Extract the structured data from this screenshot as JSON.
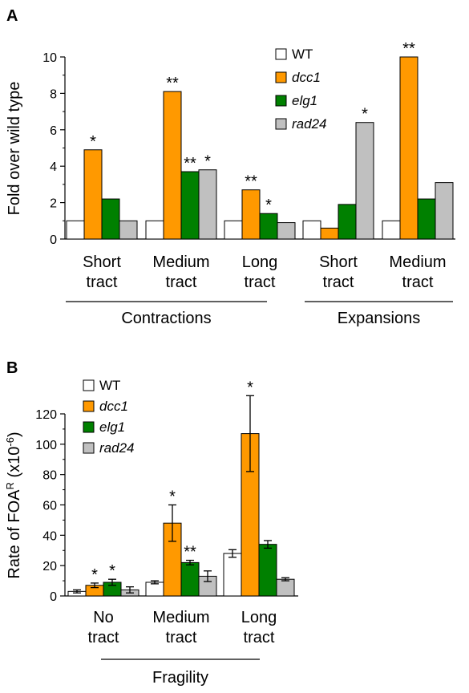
{
  "colors": {
    "WT": "#ffffff",
    "dcc1": "#ff9900",
    "elg1": "#008000",
    "rad24": "#c0c0c0"
  },
  "chart_data": [
    {
      "panel": "A",
      "type": "bar",
      "ylabel": "Fold over wild type",
      "ylim": [
        0,
        10
      ],
      "yticks": [
        "0",
        "2",
        "4",
        "6",
        "8",
        "10"
      ],
      "legend_position": "top-right",
      "categories": [
        "Short tract",
        "Medium tract",
        "Long tract",
        "Short tract",
        "Medium tract"
      ],
      "category_lines": [
        [
          "Short",
          "tract"
        ],
        [
          "Medium",
          "tract"
        ],
        [
          "Long",
          "tract"
        ],
        [
          "Short",
          "tract"
        ],
        [
          "Medium",
          "tract"
        ]
      ],
      "groups": [
        {
          "label": "Contractions",
          "categories": [
            0,
            1,
            2
          ]
        },
        {
          "label": "Expansions",
          "categories": [
            3,
            4
          ]
        }
      ],
      "series": [
        {
          "name": "WT",
          "italic": false,
          "values": [
            1,
            1,
            1,
            1,
            1
          ],
          "sig": [
            "",
            "",
            "",
            "",
            ""
          ]
        },
        {
          "name": "dcc1",
          "italic": true,
          "values": [
            4.9,
            8.1,
            2.7,
            0.6,
            10
          ],
          "sig": [
            "*",
            "**",
            "**",
            "",
            "**"
          ]
        },
        {
          "name": "elg1",
          "italic": true,
          "values": [
            2.2,
            3.7,
            1.4,
            1.9,
            2.2
          ],
          "sig": [
            "",
            "**",
            "*",
            "",
            ""
          ]
        },
        {
          "name": "rad24",
          "italic": true,
          "values": [
            1,
            3.8,
            0.9,
            6.4,
            3.1
          ],
          "sig": [
            "",
            "*",
            "",
            "*",
            ""
          ]
        }
      ]
    },
    {
      "panel": "B",
      "type": "bar",
      "ylabel": "Rate of FOA",
      "ylabel_sup": "R",
      "ylabel_tail": " (x10",
      "ylabel_exp": "-6",
      "ylabel_close": ")",
      "ylim": [
        0,
        120
      ],
      "yticks": [
        "0",
        "20",
        "40",
        "60",
        "80",
        "100",
        "120"
      ],
      "legend_position": "top-left",
      "categories": [
        "No tract",
        "Medium tract",
        "Long tract"
      ],
      "category_lines": [
        [
          "No",
          "tract"
        ],
        [
          "Medium",
          "tract"
        ],
        [
          "Long",
          "tract"
        ]
      ],
      "groups": [
        {
          "label": "Fragility",
          "categories": [
            0,
            1
          ]
        }
      ],
      "series": [
        {
          "name": "WT",
          "italic": false,
          "values": [
            3,
            9,
            28
          ],
          "errors": [
            1,
            1,
            2.5
          ],
          "sig": [
            "",
            "",
            ""
          ]
        },
        {
          "name": "dcc1",
          "italic": true,
          "values": [
            7,
            48,
            107
          ],
          "errors": [
            1.5,
            12,
            25
          ],
          "sig": [
            "*",
            "*",
            "*"
          ]
        },
        {
          "name": "elg1",
          "italic": true,
          "values": [
            9,
            22,
            34
          ],
          "errors": [
            2,
            1.5,
            2.5
          ],
          "sig": [
            "*",
            "**",
            ""
          ]
        },
        {
          "name": "rad24",
          "italic": true,
          "values": [
            4,
            13,
            11
          ],
          "errors": [
            2,
            3.5,
            1
          ],
          "sig": [
            "",
            "",
            ""
          ]
        }
      ]
    }
  ]
}
